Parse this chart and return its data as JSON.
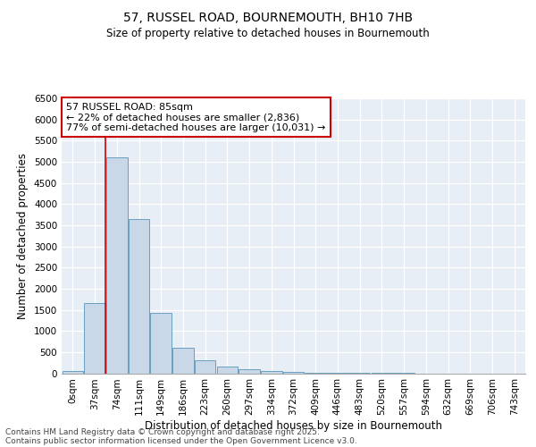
{
  "title1": "57, RUSSEL ROAD, BOURNEMOUTH, BH10 7HB",
  "title2": "Size of property relative to detached houses in Bournemouth",
  "xlabel": "Distribution of detached houses by size in Bournemouth",
  "ylabel": "Number of detached properties",
  "categories": [
    "0sqm",
    "37sqm",
    "74sqm",
    "111sqm",
    "149sqm",
    "186sqm",
    "223sqm",
    "260sqm",
    "297sqm",
    "334sqm",
    "372sqm",
    "409sqm",
    "446sqm",
    "483sqm",
    "520sqm",
    "557sqm",
    "594sqm",
    "632sqm",
    "669sqm",
    "706sqm",
    "743sqm"
  ],
  "values": [
    50,
    1650,
    5100,
    3650,
    1420,
    600,
    300,
    150,
    100,
    60,
    30,
    10,
    5,
    2,
    1,
    1,
    0,
    0,
    0,
    0,
    0
  ],
  "bar_color": "#c8d8e8",
  "bar_edge_color": "#6a9fc0",
  "vline_x": 1.5,
  "annotation_title": "57 RUSSEL ROAD: 85sqm",
  "annotation_line1": "← 22% of detached houses are smaller (2,836)",
  "annotation_line2": "77% of semi-detached houses are larger (10,031) →",
  "annotation_box_color": "#ffffff",
  "annotation_box_edge": "#cc0000",
  "vline_color": "#cc0000",
  "ylim": [
    0,
    6500
  ],
  "yticks": [
    0,
    500,
    1000,
    1500,
    2000,
    2500,
    3000,
    3500,
    4000,
    4500,
    5000,
    5500,
    6000,
    6500
  ],
  "plot_bg_color": "#e8eef5",
  "footer1": "Contains HM Land Registry data © Crown copyright and database right 2025.",
  "footer2": "Contains public sector information licensed under the Open Government Licence v3.0.",
  "title_fontsize": 10,
  "subtitle_fontsize": 8.5,
  "tick_fontsize": 7.5,
  "ylabel_fontsize": 8.5,
  "xlabel_fontsize": 8.5,
  "annot_fontsize": 8,
  "footer_fontsize": 6.5
}
